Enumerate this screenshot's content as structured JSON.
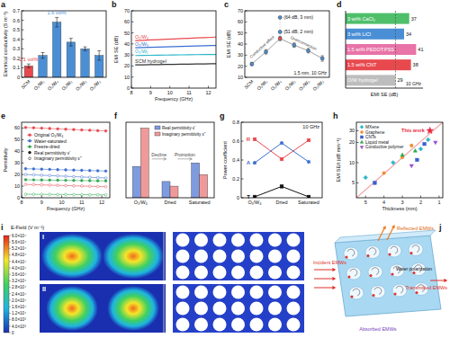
{
  "chart_data": [
    {
      "panel": "a",
      "type": "bar",
      "y_label": "Electrical conductivity (S m⁻¹)",
      "categories": [
        "SCM",
        "O₁/W₁",
        "O₁/W₄",
        "O₁/W₃",
        "O₂/W₃",
        "O₃/W₃"
      ],
      "values": [
        0.12,
        0.23,
        0.58,
        0.37,
        0.3,
        0.23
      ],
      "errors": [
        0.02,
        0.03,
        0.05,
        0.04,
        0.02,
        0.05
      ],
      "colors": [
        "#e8494f",
        "#4a8fd6",
        "#4a8fd6",
        "#4a8fd6",
        "#4a8fd6",
        "#4a8fd6"
      ],
      "ylim": [
        0,
        0.7
      ],
      "yticks": [
        0,
        0.1,
        0.2,
        0.3,
        0.4,
        0.5,
        0.6,
        0.7
      ],
      "annotations": [
        {
          "text": "2.1 vol%",
          "category": 0
        },
        {
          "text": "1.6 vol%",
          "category": 2
        }
      ]
    },
    {
      "panel": "b",
      "type": "line",
      "x_label": "Frequency (GHz)",
      "y_label": "EMI SE (dB)",
      "x": [
        8.2,
        8.6,
        9.0,
        9.4,
        9.8,
        10.2,
        10.6,
        11.0,
        11.4,
        11.8,
        12.2,
        12.4
      ],
      "xlim": [
        8,
        12.4
      ],
      "xticks": [
        8,
        9,
        10,
        11,
        12
      ],
      "ylim": [
        0,
        70
      ],
      "yticks": [
        0,
        10,
        20,
        30,
        40,
        50,
        60,
        70
      ],
      "series": [
        {
          "name": "O₁/W₄",
          "color": "#e8494f",
          "values": [
            43.0,
            43.3,
            43.6,
            43.9,
            44.2,
            44.5,
            44.8,
            45.1,
            45.4,
            45.7,
            46.0,
            46.2
          ]
        },
        {
          "name": "O₁/W₃",
          "color": "#3b6fd0",
          "values": [
            36.5,
            36.7,
            36.9,
            37.1,
            37.3,
            37.5,
            37.7,
            37.9,
            38.1,
            38.3,
            38.5,
            38.6
          ]
        },
        {
          "name": "O₁/W₁",
          "color": "#2bb5c9",
          "values": [
            29.5,
            29.6,
            29.7,
            29.8,
            29.9,
            30.0,
            30.1,
            30.2,
            30.3,
            30.4,
            30.5,
            30.5
          ]
        },
        {
          "name": "SCM hydrogel",
          "color": "#333333",
          "values": [
            21.0,
            21.1,
            21.2,
            21.3,
            21.4,
            21.5,
            21.6,
            21.7,
            21.8,
            21.9,
            22.0,
            22.0
          ]
        }
      ]
    },
    {
      "panel": "c",
      "type": "scatter",
      "y_label": "EMI SE (dB)",
      "categories": [
        "SCM",
        "O₁/W₁",
        "O₁/W₄",
        "O₁/W₃",
        "O₂/W₃",
        "O₃/W₃"
      ],
      "values": [
        22,
        33,
        45,
        39,
        34,
        27
      ],
      "errors": [
        1.5,
        2,
        2,
        2,
        2,
        2.5
      ],
      "colors": [
        "#4a8fd6",
        "#4a8fd6",
        "#e8494f",
        "#4a8fd6",
        "#4a8fd6",
        "#4a8fd6"
      ],
      "ylim": [
        10,
        70
      ],
      "yticks": [
        10,
        20,
        30,
        40,
        50,
        60,
        70
      ],
      "extra_points": [
        {
          "value": 64,
          "category": 2,
          "label": "(64 dB, 3 mm)"
        },
        {
          "value": 51,
          "category": 2,
          "label": "(51 dB, 2 mm)"
        }
      ],
      "annotations": [
        "Conductive effect",
        "Overconnection"
      ],
      "note": "1.5 mm, 10 GHz"
    },
    {
      "panel": "d",
      "type": "bar",
      "orientation": "horizontal",
      "x_label": "EMI SE (dB)",
      "categories": [
        "3 wt% CaCl₂",
        "3 wt% LiCl",
        "1.5 wt% PEDOT:PSS",
        "1.5 wt% CNT",
        "O/W hydrogel"
      ],
      "values": [
        37,
        34,
        41,
        38,
        29
      ],
      "colors": [
        "#4fbf6a",
        "#4a8fd6",
        "#e874a8",
        "#e8494f",
        "#bdbdbd"
      ],
      "xlim": [
        0,
        45
      ],
      "data_labels": true,
      "tick_labels": false,
      "reference_line": 29,
      "note": "10 GHz"
    },
    {
      "panel": "e",
      "type": "line",
      "x_label": "Frequency (GHz)",
      "y_label": "Permittivity",
      "x": [
        8.2,
        8.6,
        9.0,
        9.4,
        9.8,
        10.2,
        10.6,
        11.0,
        11.4,
        11.8,
        12.2
      ],
      "xlim": [
        8,
        12.4
      ],
      "xticks": [
        8,
        9,
        10,
        11,
        12
      ],
      "ylim": [
        0,
        65
      ],
      "yticks": [
        0,
        10,
        20,
        30,
        40,
        50,
        60
      ],
      "legend": "top-left",
      "series": [
        {
          "name": "Original O₁/W₄",
          "color": "#e8494f",
          "marker": "filled",
          "values": [
            60.5,
            60.2,
            59.9,
            59.6,
            59.3,
            59.0,
            58.7,
            58.4,
            58.1,
            57.8,
            57.5
          ]
        },
        {
          "color": "#e8494f",
          "marker": "hollow",
          "values": [
            11.5,
            11.3,
            11.1,
            10.9,
            10.7,
            10.5,
            10.3,
            10.1,
            9.9,
            9.7,
            9.5
          ]
        },
        {
          "name": "Water-saturated",
          "color": "#3b6fd0",
          "marker": "filled",
          "values": [
            25.0,
            24.8,
            24.6,
            24.4,
            24.2,
            24.0,
            23.8,
            23.6,
            23.4,
            23.2,
            23.0
          ]
        },
        {
          "color": "#3b6fd0",
          "marker": "hollow",
          "values": [
            20.0,
            19.7,
            19.4,
            19.1,
            18.8,
            18.5,
            18.2,
            17.9,
            17.6,
            17.3,
            17.0
          ]
        },
        {
          "name": "Freeze-dried",
          "color": "#2fa84f",
          "marker": "filled",
          "values": [
            15.5,
            15.4,
            15.3,
            15.2,
            15.1,
            15.0,
            14.9,
            14.8,
            14.7,
            14.6,
            14.5
          ]
        },
        {
          "color": "#2fa84f",
          "marker": "hollow",
          "values": [
            3.0,
            3.0,
            2.9,
            2.9,
            2.8,
            2.8,
            2.7,
            2.7,
            2.6,
            2.6,
            2.5
          ]
        }
      ],
      "marker_legend": [
        {
          "label": "Real permittivity ε'",
          "marker": "filled"
        },
        {
          "label": "Imaginary permittivity ε''",
          "marker": "hollow"
        }
      ]
    },
    {
      "panel": "f",
      "type": "bar",
      "categories": [
        "O₁/W₄",
        "Dried",
        "Saturated"
      ],
      "ylim": [
        0,
        65
      ],
      "tick_labels": "x",
      "legend": "top-right",
      "series": [
        {
          "name": "Real permittivity ε'",
          "color": "#7f9be0",
          "values": [
            27,
            14,
            30
          ]
        },
        {
          "name": "Imaginary permittivity ε''",
          "color": "#ef9a9a",
          "values": [
            60,
            10,
            20
          ]
        }
      ],
      "annotations": [
        "Decline",
        "Promotion"
      ]
    },
    {
      "panel": "g",
      "type": "line",
      "title": "10 GHz",
      "y_label": "Power coefficient",
      "categories": [
        "O₁/W₄",
        "Dried",
        "Saturated"
      ],
      "ylim": [
        0,
        0.8
      ],
      "yticks": [
        0,
        0.2,
        0.4,
        0.6,
        0.8
      ],
      "series": [
        {
          "name": "R",
          "color": "#e8494f",
          "marker": "square",
          "values": [
            0.62,
            0.41,
            0.61
          ]
        },
        {
          "name": "A",
          "color": "#3b6fd0",
          "marker": "circle",
          "values": [
            0.37,
            0.58,
            0.38
          ]
        },
        {
          "name": "T",
          "color": "#111111",
          "marker": "square",
          "values": [
            0.01,
            0.12,
            0.01
          ]
        }
      ]
    },
    {
      "panel": "h",
      "type": "scatter",
      "x_label": "Thickness (mm)",
      "y_label": "EMI SE/t (dB mm⁻¹)",
      "log": "y",
      "xlim": [
        5.5,
        0.8
      ],
      "xticks": [
        5,
        4,
        3,
        2,
        1
      ],
      "ylim": [
        3,
        40
      ],
      "yticks": [
        5,
        10,
        20,
        30
      ],
      "legend": "top-left",
      "series": [
        {
          "name": "MXene",
          "color": "#2bb5c9",
          "marker": "diamond",
          "x": [
            5,
            3.5,
            2,
            1.6
          ],
          "values": [
            6,
            10,
            16,
            22
          ]
        },
        {
          "name": "Graphene",
          "color": "#f08c2c",
          "marker": "circle",
          "x": [
            4,
            3,
            2.5
          ],
          "values": [
            7,
            12,
            18
          ]
        },
        {
          "name": "CNTs",
          "color": "#3b5fd0",
          "marker": "square",
          "x": [
            4.5,
            2.2,
            1.8
          ],
          "values": [
            5,
            11,
            19
          ]
        },
        {
          "name": "Liquid metal",
          "color": "#2fa84f",
          "marker": "triangle",
          "x": [
            3,
            2.3
          ],
          "values": [
            13,
            15
          ]
        },
        {
          "name": "Conductive polymer",
          "color": "#9b4fc9",
          "marker": "triangle_down",
          "x": [
            2.5,
            1.2
          ],
          "values": [
            9,
            20
          ]
        },
        {
          "name": "This work",
          "color": "#e8263a",
          "marker": "star",
          "x": [
            1.5
          ],
          "values": [
            30
          ]
        }
      ]
    },
    {
      "panel": "i",
      "type": "field_map",
      "title": "E-Field (V m⁻¹)",
      "maps": [
        "I",
        "II"
      ],
      "colorbar_range": [
        0,
        60000
      ],
      "colorbar_ticks": [
        {
          "value": 60000,
          "label": "6.0×10⁴"
        },
        {
          "value": 56000,
          "label": "5.6×10⁴"
        },
        {
          "value": 52000,
          "label": "5.2×10⁴"
        },
        {
          "value": 48000,
          "label": "4.8×10⁴"
        },
        {
          "value": 44000,
          "label": "4.4×10⁴"
        },
        {
          "value": 40000,
          "label": "4.0×10⁴"
        },
        {
          "value": 36000,
          "label": "3.6×10⁴"
        },
        {
          "value": 32000,
          "label": "3.2×10⁴"
        },
        {
          "value": 28000,
          "label": "2.8×10⁴"
        },
        {
          "value": 24000,
          "label": "2.4×10⁴"
        },
        {
          "value": 20000,
          "label": "2.0×10⁴"
        },
        {
          "value": 16000,
          "label": "1.6×10⁴"
        },
        {
          "value": 12000,
          "label": "1.2×10⁴"
        },
        {
          "value": 8000,
          "label": "8.0×10³"
        },
        {
          "value": 4000,
          "label": "4.0×10³"
        },
        0
      ]
    }
  ],
  "diagram": {
    "panel": "j",
    "labels": {
      "reflected": "Reflected EMWs",
      "incident": "Incident EMWs",
      "transmitted": "Transmitted EMWs",
      "absorbed": "Absorbed EMWs",
      "polarization": "Water polarization"
    }
  }
}
